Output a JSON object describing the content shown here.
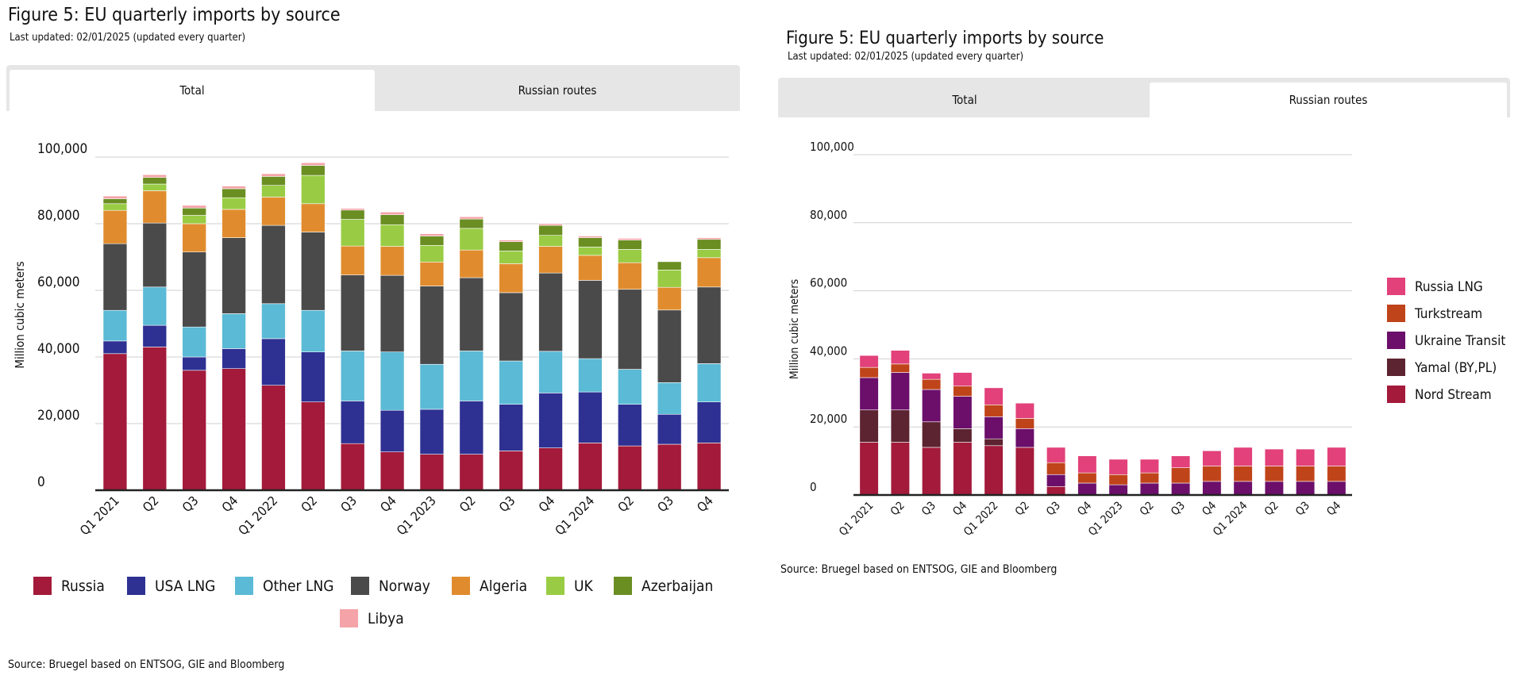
{
  "left": {
    "title": "Figure 5: EU quarterly imports by source",
    "subtitle": "Last updated: 02/01/2025 (updated every quarter)",
    "tabs": [
      {
        "label": "Total",
        "active": true
      },
      {
        "label": "Russian routes",
        "active": false
      }
    ],
    "source": "Source: Bruegel based on ENTSOG, GIE and Bloomberg"
  },
  "right": {
    "title": "Figure 5: EU quarterly imports by source",
    "subtitle": "Last updated: 02/01/2025 (updated every quarter)",
    "tabs": [
      {
        "label": "Total",
        "active": false
      },
      {
        "label": "Russian routes",
        "active": true
      }
    ],
    "source": "Source: Bruegel based on ENTSOG, GIE and Bloomberg"
  },
  "chart_data": [
    {
      "type": "bar",
      "stacked": true,
      "ylabel": "Million cubic meters",
      "ylim": [
        0,
        100000
      ],
      "yticks": [
        0,
        20000,
        40000,
        60000,
        80000,
        100000
      ],
      "ytick_labels": [
        "0",
        "20,000",
        "40,000",
        "60,000",
        "80,000",
        "100,000"
      ],
      "grid": true,
      "legend_position": "bottom",
      "categories": [
        "Q1 2021",
        "Q2",
        "Q3",
        "Q4",
        "Q1 2022",
        "Q2",
        "Q3",
        "Q4",
        "Q1 2023",
        "Q2",
        "Q3",
        "Q4",
        "Q1 2024",
        "Q2",
        "Q3",
        "Q4"
      ],
      "series": [
        {
          "name": "Russia",
          "color": "#a31a3a",
          "values": [
            41000,
            43000,
            36000,
            36500,
            31500,
            26500,
            14000,
            11500,
            10800,
            10800,
            11800,
            12700,
            14200,
            13300,
            13800,
            14200
          ]
        },
        {
          "name": "USA LNG",
          "color": "#2e3192",
          "values": [
            3800,
            6500,
            4000,
            6000,
            14000,
            15000,
            12800,
            12500,
            13500,
            16000,
            14000,
            16500,
            15300,
            12500,
            9000,
            12300
          ]
        },
        {
          "name": "Other LNG",
          "color": "#5bbad5",
          "values": [
            9200,
            11500,
            9000,
            10500,
            10500,
            12500,
            15000,
            17500,
            13500,
            15000,
            13000,
            12500,
            10000,
            10500,
            9500,
            11500
          ]
        },
        {
          "name": "Norway",
          "color": "#4a4a4a",
          "values": [
            20000,
            19200,
            22500,
            22800,
            23500,
            23500,
            22800,
            23000,
            23500,
            22000,
            20500,
            23500,
            23500,
            24000,
            21800,
            23000
          ]
        },
        {
          "name": "Algeria",
          "color": "#e08c2e",
          "values": [
            10000,
            9700,
            8500,
            8500,
            8500,
            8500,
            8700,
            8700,
            7200,
            8300,
            8700,
            8000,
            7500,
            8000,
            6800,
            8800
          ]
        },
        {
          "name": "UK",
          "color": "#99cc44",
          "values": [
            2000,
            2000,
            2500,
            3500,
            3500,
            8500,
            8000,
            6500,
            5000,
            6500,
            3800,
            3300,
            2500,
            4000,
            5200,
            2500
          ]
        },
        {
          "name": "Azerbaijan",
          "color": "#6b8e23",
          "values": [
            1500,
            2000,
            2200,
            2700,
            2700,
            3000,
            2800,
            3000,
            2800,
            2800,
            2800,
            3000,
            2800,
            2800,
            2500,
            3000
          ]
        },
        {
          "name": "Libya",
          "color": "#f4a3a8",
          "values": [
            800,
            800,
            800,
            800,
            800,
            800,
            500,
            800,
            700,
            700,
            500,
            500,
            500,
            500,
            0,
            500
          ]
        }
      ]
    },
    {
      "type": "bar",
      "stacked": true,
      "ylabel": "Million cubic meters",
      "ylim": [
        0,
        100000
      ],
      "yticks": [
        0,
        20000,
        40000,
        60000,
        80000,
        100000
      ],
      "ytick_labels": [
        "0",
        "20,000",
        "40,000",
        "60,000",
        "80,000",
        "100,000"
      ],
      "grid": true,
      "legend_position": "right",
      "categories": [
        "Q1 2021",
        "Q2",
        "Q3",
        "Q4",
        "Q1 2022",
        "Q2",
        "Q3",
        "Q4",
        "Q1 2023",
        "Q2",
        "Q3",
        "Q4",
        "Q1 2024",
        "Q2",
        "Q3",
        "Q4"
      ],
      "series": [
        {
          "name": "Nord Stream",
          "color": "#a31a3a",
          "values": [
            15500,
            15500,
            14000,
            15500,
            14500,
            14000,
            2500,
            0,
            0,
            0,
            0,
            0,
            0,
            0,
            0,
            0
          ]
        },
        {
          "name": "Yamal (BY,PL)",
          "color": "#5c2330",
          "values": [
            9500,
            9500,
            7500,
            4000,
            2000,
            0,
            0,
            0,
            0,
            0,
            0,
            0,
            0,
            0,
            0,
            0
          ]
        },
        {
          "name": "Ukraine Transit",
          "color": "#6b0f6b",
          "values": [
            9500,
            11000,
            9500,
            9500,
            6500,
            5500,
            3500,
            3500,
            3000,
            3500,
            3500,
            4000,
            4000,
            4000,
            4000,
            4000
          ]
        },
        {
          "name": "Turkstream",
          "color": "#c0441a",
          "values": [
            3000,
            2500,
            3000,
            3000,
            3500,
            3000,
            3500,
            3000,
            3000,
            3000,
            4500,
            4500,
            4500,
            4500,
            4500,
            4500
          ]
        },
        {
          "name": "Russia LNG",
          "color": "#e2417a",
          "values": [
            3500,
            4000,
            1800,
            4000,
            5000,
            4500,
            4500,
            5000,
            4500,
            4000,
            3500,
            4500,
            5500,
            5000,
            5000,
            5500
          ]
        }
      ]
    }
  ]
}
